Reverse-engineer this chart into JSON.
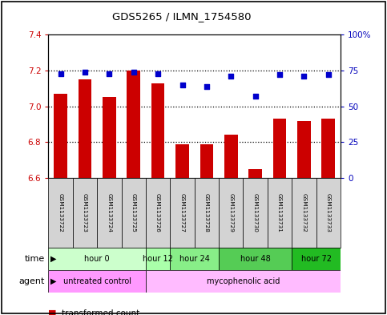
{
  "title": "GDS5265 / ILMN_1754580",
  "samples": [
    "GSM1133722",
    "GSM1133723",
    "GSM1133724",
    "GSM1133725",
    "GSM1133726",
    "GSM1133727",
    "GSM1133728",
    "GSM1133729",
    "GSM1133730",
    "GSM1133731",
    "GSM1133732",
    "GSM1133733"
  ],
  "transformed_counts": [
    7.07,
    7.15,
    7.05,
    7.2,
    7.13,
    6.79,
    6.79,
    6.84,
    6.65,
    6.93,
    6.92,
    6.93
  ],
  "percentile_ranks": [
    73,
    74,
    73,
    74,
    73,
    65,
    64,
    71,
    57,
    72,
    71,
    72
  ],
  "ylim_left": [
    6.6,
    7.4
  ],
  "ylim_right": [
    0,
    100
  ],
  "yticks_left": [
    6.6,
    6.8,
    7.0,
    7.2,
    7.4
  ],
  "yticks_right": [
    0,
    25,
    50,
    75,
    100
  ],
  "bar_color": "#cc0000",
  "dot_color": "#0000cc",
  "time_groups": [
    {
      "label": "hour 0",
      "start": 0,
      "end": 3,
      "color": "#ccffcc"
    },
    {
      "label": "hour 12",
      "start": 4,
      "end": 4,
      "color": "#aaffaa"
    },
    {
      "label": "hour 24",
      "start": 5,
      "end": 6,
      "color": "#88ee88"
    },
    {
      "label": "hour 48",
      "start": 7,
      "end": 9,
      "color": "#55cc55"
    },
    {
      "label": "hour 72",
      "start": 10,
      "end": 11,
      "color": "#22bb22"
    }
  ],
  "agent_groups": [
    {
      "label": "untreated control",
      "start": 0,
      "end": 3,
      "color": "#ff99ff"
    },
    {
      "label": "mycophenolic acid",
      "start": 4,
      "end": 11,
      "color": "#ffbbff"
    }
  ],
  "background_color": "#ffffff",
  "axis_color_left": "#cc0000",
  "axis_color_right": "#0000bb",
  "sample_box_color": "#d3d3d3",
  "border_color": "#000000"
}
